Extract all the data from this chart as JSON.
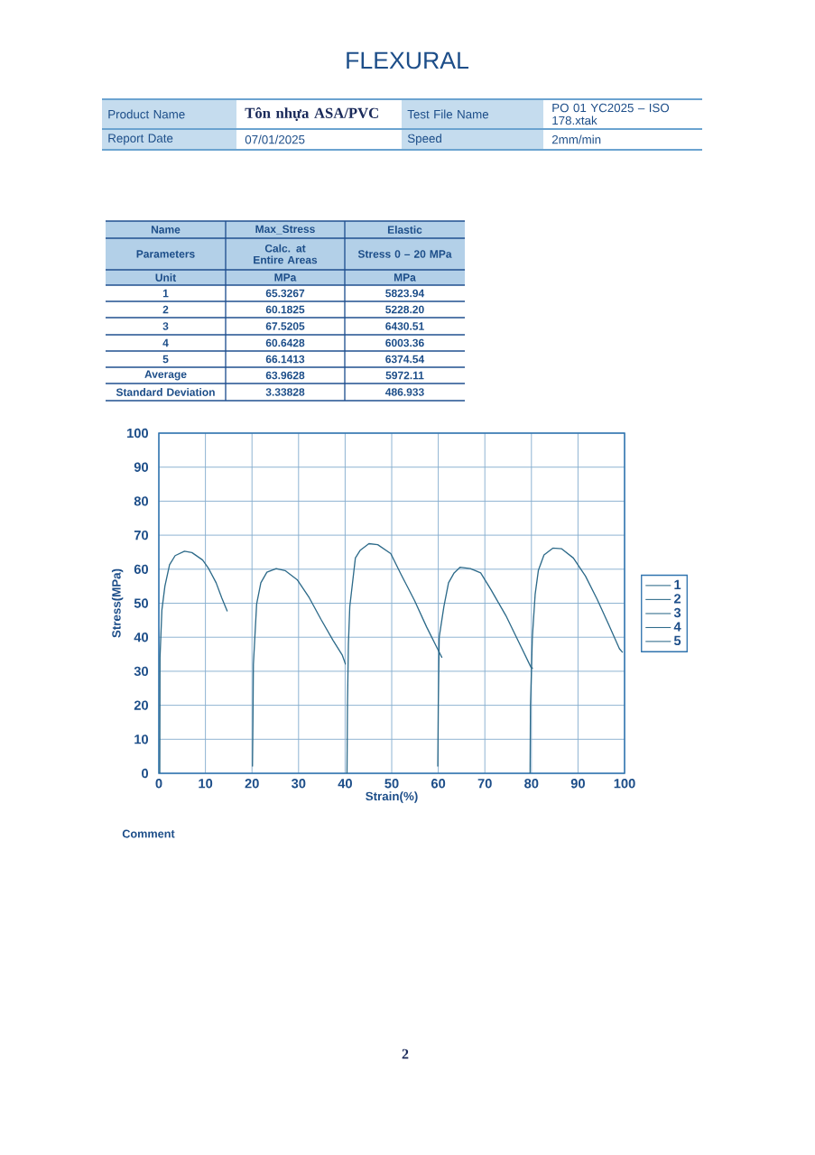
{
  "chart_data": {
    "type": "line",
    "title": "FLEXURAL",
    "xlabel": "Strain(%)",
    "ylabel": "Stress(MPa)",
    "xlim": [
      0,
      100
    ],
    "ylim": [
      0,
      100
    ],
    "xticks": [
      0,
      10,
      20,
      30,
      40,
      50,
      60,
      70,
      80,
      90,
      100
    ],
    "yticks": [
      0,
      10,
      20,
      30,
      40,
      50,
      60,
      70,
      80,
      90,
      100
    ],
    "grid": true,
    "legend": "right",
    "line_style": "solid",
    "series": [
      {
        "name": "1",
        "color": "#2e6b8a",
        "x": [
          0.2,
          0.25,
          0.65,
          1.3,
          2.3,
          3.5,
          5.5,
          7.1,
          9.4,
          10.6,
          12.3,
          13.5,
          14.7
        ],
        "values": [
          0,
          34,
          48,
          55,
          61.3,
          64,
          65.3,
          64.9,
          62.7,
          60.4,
          56,
          51.6,
          47.6
        ]
      },
      {
        "name": "2",
        "color": "#2e6b8a",
        "x": [
          20.1,
          20.2,
          20.3,
          21,
          21.9,
          23.2,
          25.2,
          27.1,
          29.7,
          32.3,
          34.8,
          37.4,
          39.4,
          40.1
        ],
        "values": [
          2,
          15,
          32,
          49.8,
          56,
          59.1,
          60.2,
          59.6,
          56.9,
          51.6,
          45.3,
          39.1,
          34.7,
          32
        ]
      },
      {
        "name": "3",
        "color": "#2e6b8a",
        "x": [
          40.4,
          40.5,
          40.7,
          41,
          42.2,
          43.2,
          45.1,
          47,
          49.8,
          52,
          54.9,
          57.5,
          60.2,
          60.8
        ],
        "values": [
          0,
          20,
          38,
          49,
          63.3,
          65.5,
          67.5,
          67.2,
          64.6,
          58.5,
          50.8,
          43,
          35.6,
          34
        ]
      },
      {
        "name": "4",
        "color": "#2e6b8a",
        "x": [
          59.9,
          60,
          60.2,
          61.2,
          62.2,
          63.4,
          64.7,
          66.9,
          69.1,
          71.3,
          74.5,
          77.7,
          79.9,
          80.3
        ],
        "values": [
          2,
          20,
          40,
          49,
          56,
          58.9,
          60.6,
          60.2,
          58.9,
          54,
          46.4,
          37.4,
          31.2,
          30.8
        ]
      },
      {
        "name": "5",
        "color": "#2e6b8a",
        "x": [
          79.7,
          79.8,
          80.2,
          80.8,
          81.5,
          82.7,
          84.6,
          86.5,
          89,
          91.6,
          94.1,
          96.6,
          98.9,
          99.6
        ],
        "values": [
          0,
          20,
          40,
          52.6,
          59.7,
          64.2,
          66.2,
          66,
          63.3,
          58,
          51.2,
          43.7,
          36.6,
          35.5
        ]
      }
    ],
    "annotations": [
      "Product Name",
      "Tôn nhựa ASA/PVC",
      "Test File Name",
      "PO 01 YC2025 – ISO 178.xtak",
      "Report Date",
      "07/01/2025",
      "Speed",
      "2mm/min",
      "Name",
      "Max_Stress",
      "Elastic",
      "Parameters",
      "Calc. at Entire Areas",
      "Stress 0 – 20 MPa",
      "Unit",
      "MPa",
      "MPa",
      "1",
      "65.3267",
      "5823.94",
      "2",
      "60.1825",
      "5228.20",
      "3",
      "67.5205",
      "6430.51",
      "4",
      "60.6428",
      "6003.36",
      "5",
      "66.1413",
      "6374.54",
      "Average",
      "63.9628",
      "5972.11",
      "Standard Deviation",
      "3.33828",
      "486.933",
      "Comment",
      "2"
    ]
  }
}
